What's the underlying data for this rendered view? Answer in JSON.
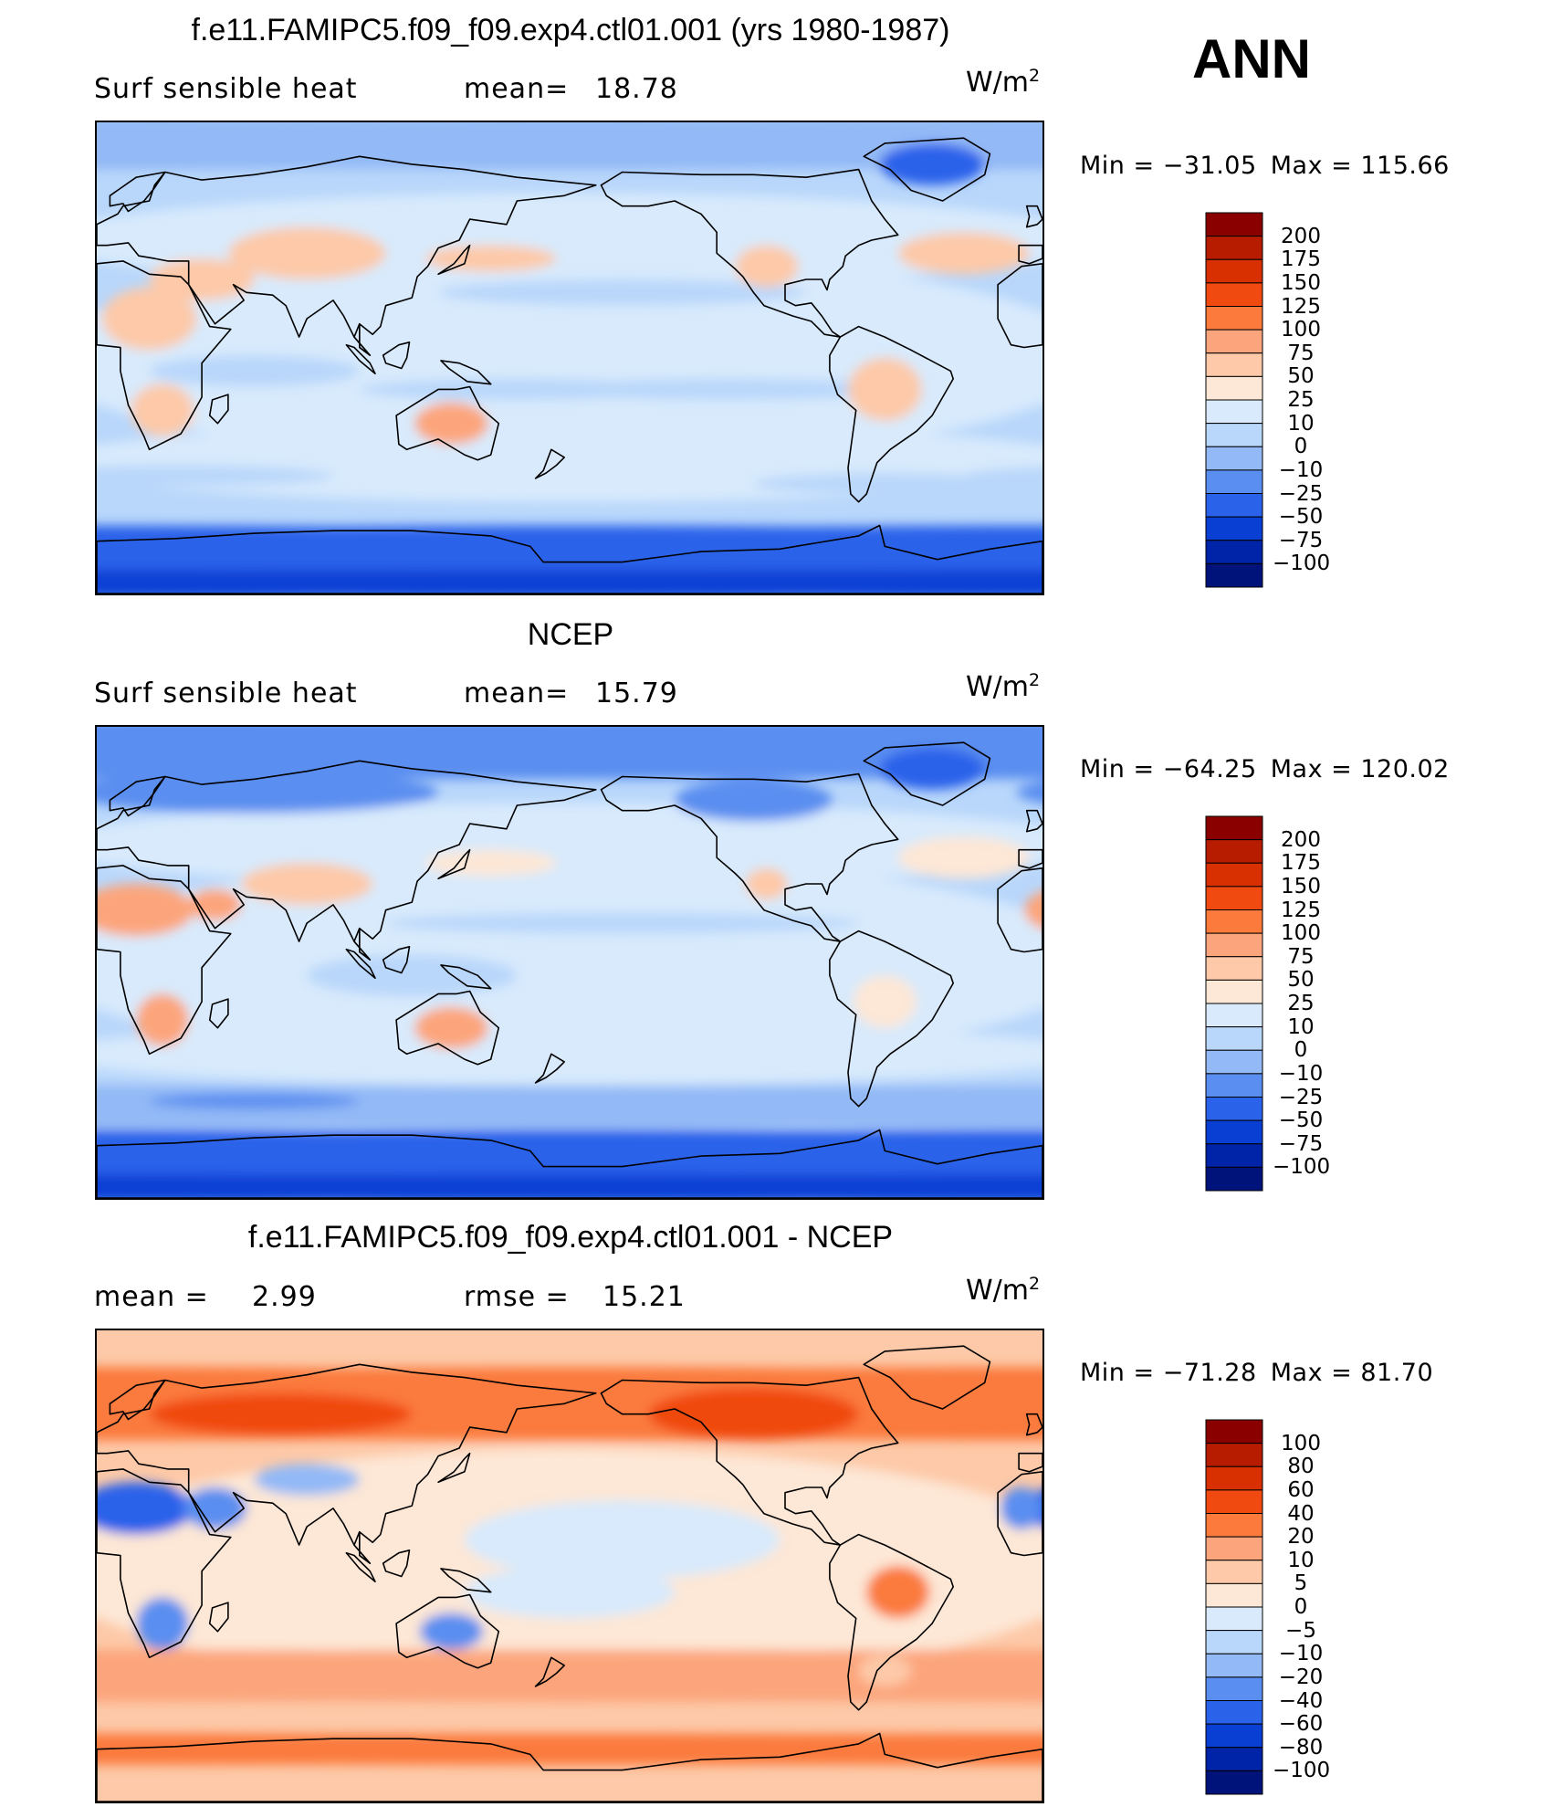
{
  "season": "ANN",
  "chart_data": [
    {
      "type": "heatmap",
      "title": "f.e11.FAMIPC5.f09_f09.exp4.ctl01.001 (yrs 1980-1987)",
      "variable": "Surf  sensible  heat",
      "stat1_label": "mean=",
      "stat1_value": "18.78",
      "units": "W/m",
      "units_exp": "2",
      "min_label": "Min  =",
      "min_value": "−31.05",
      "max_label": "Max  =",
      "max_value": "115.66",
      "colorbar_levels": [
        "200",
        "175",
        "150",
        "125",
        "100",
        "75",
        "50",
        "25",
        "10",
        "0",
        "−10",
        "−25",
        "−50",
        "−75",
        "−100"
      ],
      "colorbar_colors": [
        "#8a0000",
        "#b71c00",
        "#d83000",
        "#f04a10",
        "#fb7a3c",
        "#fca57c",
        "#fdc9a8",
        "#fde7d6",
        "#d8eafc",
        "#b9d7fb",
        "#93b9f6",
        "#5a8ef0",
        "#2a62ea",
        "#0a3fd4",
        "#0024a8",
        "#00137a"
      ],
      "map_style": "model"
    },
    {
      "type": "heatmap",
      "title": "NCEP",
      "variable": "Surf  sensible  heat",
      "stat1_label": "mean=",
      "stat1_value": "15.79",
      "units": "W/m",
      "units_exp": "2",
      "min_label": "Min  =",
      "min_value": "−64.25",
      "max_label": "Max  =",
      "max_value": "120.02",
      "colorbar_levels": [
        "200",
        "175",
        "150",
        "125",
        "100",
        "75",
        "50",
        "25",
        "10",
        "0",
        "−10",
        "−25",
        "−50",
        "−75",
        "−100"
      ],
      "colorbar_colors": [
        "#8a0000",
        "#b71c00",
        "#d83000",
        "#f04a10",
        "#fb7a3c",
        "#fca57c",
        "#fdc9a8",
        "#fde7d6",
        "#d8eafc",
        "#b9d7fb",
        "#93b9f6",
        "#5a8ef0",
        "#2a62ea",
        "#0a3fd4",
        "#0024a8",
        "#00137a"
      ],
      "map_style": "obs"
    },
    {
      "type": "heatmap",
      "title": "f.e11.FAMIPC5.f09_f09.exp4.ctl01.001 - NCEP",
      "stat1_label": "mean  =",
      "stat1_value": "2.99",
      "stat2_label": "rmse  =",
      "stat2_value": "15.21",
      "units": "W/m",
      "units_exp": "2",
      "min_label": "Min  =",
      "min_value": "−71.28",
      "max_label": "Max  =",
      "max_value": "81.70",
      "colorbar_levels": [
        "100",
        "80",
        "60",
        "40",
        "20",
        "10",
        "5",
        "0",
        "−5",
        "−10",
        "−20",
        "−40",
        "−60",
        "−80",
        "−100"
      ],
      "colorbar_colors": [
        "#8a0000",
        "#b71c00",
        "#d83000",
        "#f04a10",
        "#fb7a3c",
        "#fca57c",
        "#fdc9a8",
        "#fde7d6",
        "#d8eafc",
        "#b9d7fb",
        "#93b9f6",
        "#5a8ef0",
        "#2a62ea",
        "#0a3fd4",
        "#0024a8",
        "#00137a"
      ],
      "map_style": "diff"
    }
  ]
}
